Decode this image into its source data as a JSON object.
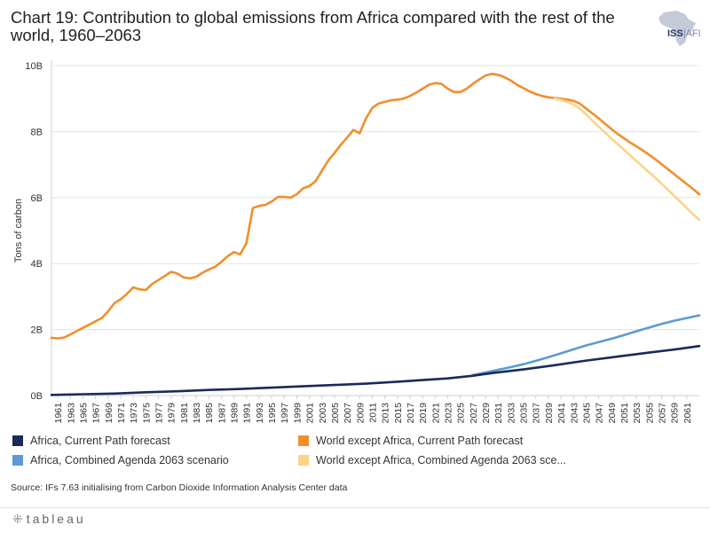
{
  "header": {
    "title": "Chart 19: Contribution to global emissions from Africa compared with the rest of the world, 1960–2063",
    "logo_text": "ISS",
    "logo_suffix": "AFI"
  },
  "chart_data": {
    "type": "line",
    "ylabel": "Tons of carbon",
    "xlabel": "",
    "ylim": [
      0,
      10
    ],
    "y_unit": "billion tons of carbon",
    "y_ticks": [
      {
        "value": 0,
        "label": "0B"
      },
      {
        "value": 2,
        "label": "2B"
      },
      {
        "value": 4,
        "label": "4B"
      },
      {
        "value": 6,
        "label": "6B"
      },
      {
        "value": 8,
        "label": "8B"
      },
      {
        "value": 10,
        "label": "10B"
      }
    ],
    "x_range": [
      1960,
      2063
    ],
    "x_tick_labels": [
      "1961",
      "1963",
      "1965",
      "1967",
      "1969",
      "1971",
      "1973",
      "1975",
      "1977",
      "1979",
      "1981",
      "1983",
      "1985",
      "1987",
      "1989",
      "1991",
      "1993",
      "1995",
      "1997",
      "1999",
      "2001",
      "2003",
      "2005",
      "2007",
      "2009",
      "2011",
      "2013",
      "2015",
      "2017",
      "2019",
      "2021",
      "2023",
      "2025",
      "2027",
      "2029",
      "2031",
      "2033",
      "2035",
      "2037",
      "2039",
      "2041",
      "2043",
      "2045",
      "2047",
      "2049",
      "2051",
      "2053",
      "2055",
      "2057",
      "2059",
      "2061"
    ],
    "series": [
      {
        "name": "World except Africa, Current Path forecast",
        "color": "#f28e2b",
        "points": [
          [
            1960,
            1.75
          ],
          [
            1961,
            1.73
          ],
          [
            1962,
            1.76
          ],
          [
            1963,
            1.85
          ],
          [
            1964,
            1.95
          ],
          [
            1965,
            2.05
          ],
          [
            1966,
            2.15
          ],
          [
            1967,
            2.25
          ],
          [
            1968,
            2.35
          ],
          [
            1969,
            2.55
          ],
          [
            1970,
            2.8
          ],
          [
            1971,
            2.92
          ],
          [
            1972,
            3.08
          ],
          [
            1973,
            3.28
          ],
          [
            1974,
            3.22
          ],
          [
            1975,
            3.2
          ],
          [
            1976,
            3.38
          ],
          [
            1977,
            3.5
          ],
          [
            1978,
            3.62
          ],
          [
            1979,
            3.75
          ],
          [
            1980,
            3.7
          ],
          [
            1981,
            3.58
          ],
          [
            1982,
            3.55
          ],
          [
            1983,
            3.6
          ],
          [
            1984,
            3.72
          ],
          [
            1985,
            3.82
          ],
          [
            1986,
            3.9
          ],
          [
            1987,
            4.05
          ],
          [
            1988,
            4.22
          ],
          [
            1989,
            4.35
          ],
          [
            1990,
            4.28
          ],
          [
            1991,
            4.62
          ],
          [
            1992,
            5.68
          ],
          [
            1993,
            5.75
          ],
          [
            1994,
            5.78
          ],
          [
            1995,
            5.88
          ],
          [
            1996,
            6.02
          ],
          [
            1997,
            6.02
          ],
          [
            1998,
            6.0
          ],
          [
            1999,
            6.1
          ],
          [
            2000,
            6.28
          ],
          [
            2001,
            6.35
          ],
          [
            2002,
            6.5
          ],
          [
            2003,
            6.82
          ],
          [
            2004,
            7.12
          ],
          [
            2005,
            7.35
          ],
          [
            2006,
            7.6
          ],
          [
            2007,
            7.82
          ],
          [
            2008,
            8.05
          ],
          [
            2009,
            7.95
          ],
          [
            2010,
            8.4
          ],
          [
            2011,
            8.72
          ],
          [
            2012,
            8.85
          ],
          [
            2013,
            8.9
          ],
          [
            2014,
            8.95
          ],
          [
            2015,
            8.97
          ],
          [
            2016,
            9.0
          ],
          [
            2017,
            9.08
          ],
          [
            2018,
            9.18
          ],
          [
            2019,
            9.3
          ],
          [
            2020,
            9.42
          ],
          [
            2021,
            9.47
          ],
          [
            2022,
            9.45
          ],
          [
            2023,
            9.3
          ],
          [
            2024,
            9.2
          ],
          [
            2025,
            9.2
          ],
          [
            2026,
            9.3
          ],
          [
            2027,
            9.45
          ],
          [
            2028,
            9.58
          ],
          [
            2029,
            9.7
          ],
          [
            2030,
            9.75
          ],
          [
            2031,
            9.72
          ],
          [
            2032,
            9.65
          ],
          [
            2033,
            9.55
          ],
          [
            2034,
            9.42
          ],
          [
            2035,
            9.32
          ],
          [
            2036,
            9.22
          ],
          [
            2037,
            9.14
          ],
          [
            2038,
            9.08
          ],
          [
            2039,
            9.04
          ],
          [
            2040,
            9.02
          ],
          [
            2041,
            9.0
          ],
          [
            2042,
            8.97
          ],
          [
            2043,
            8.93
          ],
          [
            2044,
            8.85
          ],
          [
            2045,
            8.7
          ],
          [
            2046,
            8.55
          ],
          [
            2047,
            8.4
          ],
          [
            2048,
            8.24
          ],
          [
            2049,
            8.08
          ],
          [
            2050,
            7.93
          ],
          [
            2051,
            7.8
          ],
          [
            2052,
            7.67
          ],
          [
            2053,
            7.55
          ],
          [
            2054,
            7.43
          ],
          [
            2055,
            7.3
          ],
          [
            2056,
            7.16
          ],
          [
            2057,
            7.01
          ],
          [
            2058,
            6.86
          ],
          [
            2059,
            6.71
          ],
          [
            2060,
            6.56
          ],
          [
            2061,
            6.41
          ],
          [
            2062,
            6.26
          ],
          [
            2063,
            6.1
          ]
        ]
      },
      {
        "name": "World except Africa, Combined Agenda 2063 scenario",
        "color": "#fbd48a",
        "points": [
          [
            2040,
            9.0
          ],
          [
            2041,
            8.96
          ],
          [
            2042,
            8.9
          ],
          [
            2043,
            8.82
          ],
          [
            2044,
            8.7
          ],
          [
            2045,
            8.52
          ],
          [
            2046,
            8.33
          ],
          [
            2047,
            8.15
          ],
          [
            2048,
            7.97
          ],
          [
            2049,
            7.79
          ],
          [
            2050,
            7.62
          ],
          [
            2051,
            7.45
          ],
          [
            2052,
            7.28
          ],
          [
            2053,
            7.11
          ],
          [
            2054,
            6.94
          ],
          [
            2055,
            6.77
          ],
          [
            2056,
            6.6
          ],
          [
            2057,
            6.42
          ],
          [
            2058,
            6.24
          ],
          [
            2059,
            6.05
          ],
          [
            2060,
            5.87
          ],
          [
            2061,
            5.68
          ],
          [
            2062,
            5.5
          ],
          [
            2063,
            5.32
          ]
        ]
      },
      {
        "name": "Africa, Combined Agenda 2063 scenario",
        "color": "#5b9bd5",
        "points": [
          [
            2027,
            0.62
          ],
          [
            2029,
            0.7
          ],
          [
            2031,
            0.78
          ],
          [
            2033,
            0.86
          ],
          [
            2035,
            0.95
          ],
          [
            2037,
            1.05
          ],
          [
            2039,
            1.16
          ],
          [
            2041,
            1.28
          ],
          [
            2043,
            1.4
          ],
          [
            2045,
            1.52
          ],
          [
            2047,
            1.62
          ],
          [
            2049,
            1.72
          ],
          [
            2051,
            1.83
          ],
          [
            2053,
            1.95
          ],
          [
            2055,
            2.06
          ],
          [
            2057,
            2.17
          ],
          [
            2059,
            2.27
          ],
          [
            2061,
            2.35
          ],
          [
            2063,
            2.43
          ]
        ]
      },
      {
        "name": "Africa, Current Path forecast",
        "color": "#1b2a5b",
        "points": [
          [
            1960,
            0.02
          ],
          [
            1965,
            0.04
          ],
          [
            1970,
            0.06
          ],
          [
            1975,
            0.1
          ],
          [
            1980,
            0.13
          ],
          [
            1985,
            0.17
          ],
          [
            1990,
            0.2
          ],
          [
            1995,
            0.24
          ],
          [
            2000,
            0.28
          ],
          [
            2005,
            0.32
          ],
          [
            2010,
            0.36
          ],
          [
            2015,
            0.42
          ],
          [
            2020,
            0.48
          ],
          [
            2023,
            0.52
          ],
          [
            2025,
            0.56
          ],
          [
            2027,
            0.6
          ],
          [
            2030,
            0.68
          ],
          [
            2035,
            0.79
          ],
          [
            2040,
            0.92
          ],
          [
            2045,
            1.06
          ],
          [
            2050,
            1.18
          ],
          [
            2055,
            1.3
          ],
          [
            2060,
            1.42
          ],
          [
            2063,
            1.5
          ]
        ]
      }
    ]
  },
  "legend": {
    "items": [
      {
        "label": "Africa, Current Path forecast",
        "color": "#1b2a5b"
      },
      {
        "label": "World except Africa, Current Path forecast",
        "color": "#f28e2b"
      },
      {
        "label": "Africa, Combined Agenda 2063 scenario",
        "color": "#5b9bd5"
      },
      {
        "label": "World except Africa, Combined Agenda 2063 sce...",
        "color": "#fbd48a"
      }
    ]
  },
  "source": "Source: IFs 7.63 initialising from Carbon Dioxide Information Analysis Center data",
  "footer": {
    "brand": "tableau",
    "brand_icon": "tableau-plus-icon"
  }
}
